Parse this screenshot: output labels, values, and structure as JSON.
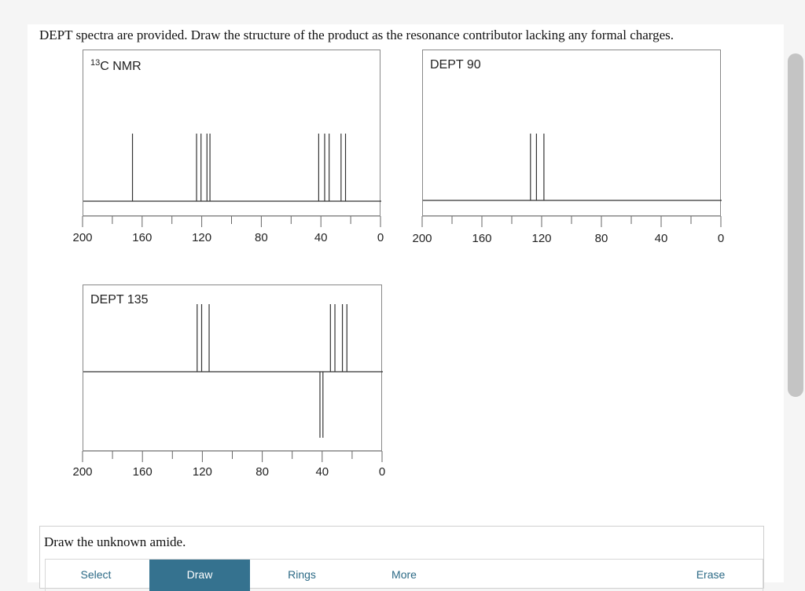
{
  "question": "DEPT spectra are provided. Draw the structure of the product as the resonance contributor lacking any formal charges.",
  "spectra": {
    "c13": {
      "title_sup": "13",
      "title_main": "C NMR",
      "peaks": [
        167,
        124,
        121,
        117,
        115,
        42,
        38,
        35,
        27,
        24
      ]
    },
    "dept90": {
      "title": "DEPT 90",
      "peaks": [
        128,
        124,
        119
      ]
    },
    "dept135": {
      "title": "DEPT 135",
      "peaks_up": [
        124,
        121,
        116,
        35,
        32,
        27,
        24
      ],
      "peaks_down": [
        42,
        40
      ]
    },
    "tick_labels": [
      "200",
      "160",
      "120",
      "80",
      "40",
      "0"
    ]
  },
  "draw": {
    "prompt": "Draw the unknown amide.",
    "tools": [
      "Select",
      "Draw",
      "Rings",
      "More",
      "Erase"
    ],
    "active_tool": "Draw"
  },
  "colors": {
    "active_tool_bg": "#35728f",
    "tool_text": "#2c6a86"
  },
  "chart_data": [
    {
      "type": "line",
      "title": "13C NMR",
      "xlabel": "",
      "ylabel": "",
      "xlim": [
        200,
        0
      ],
      "x_ticks": [
        200,
        160,
        120,
        80,
        40,
        0
      ],
      "series": [
        {
          "values": [
            167,
            124,
            121,
            117,
            115,
            42,
            38,
            35,
            27,
            24
          ]
        }
      ]
    },
    {
      "type": "line",
      "title": "DEPT 90",
      "xlabel": "",
      "ylabel": "",
      "xlim": [
        200,
        0
      ],
      "x_ticks": [
        200,
        160,
        120,
        80,
        40,
        0
      ],
      "series": [
        {
          "values": [
            128,
            124,
            119
          ]
        }
      ]
    },
    {
      "type": "line",
      "title": "DEPT 135",
      "xlabel": "",
      "ylabel": "",
      "xlim": [
        200,
        0
      ],
      "x_ticks": [
        200,
        160,
        120,
        80,
        40,
        0
      ],
      "series": [
        {
          "values": [
            124,
            121,
            116,
            35,
            32,
            27,
            24
          ]
        },
        {
          "values": [
            42,
            40
          ]
        }
      ]
    }
  ]
}
